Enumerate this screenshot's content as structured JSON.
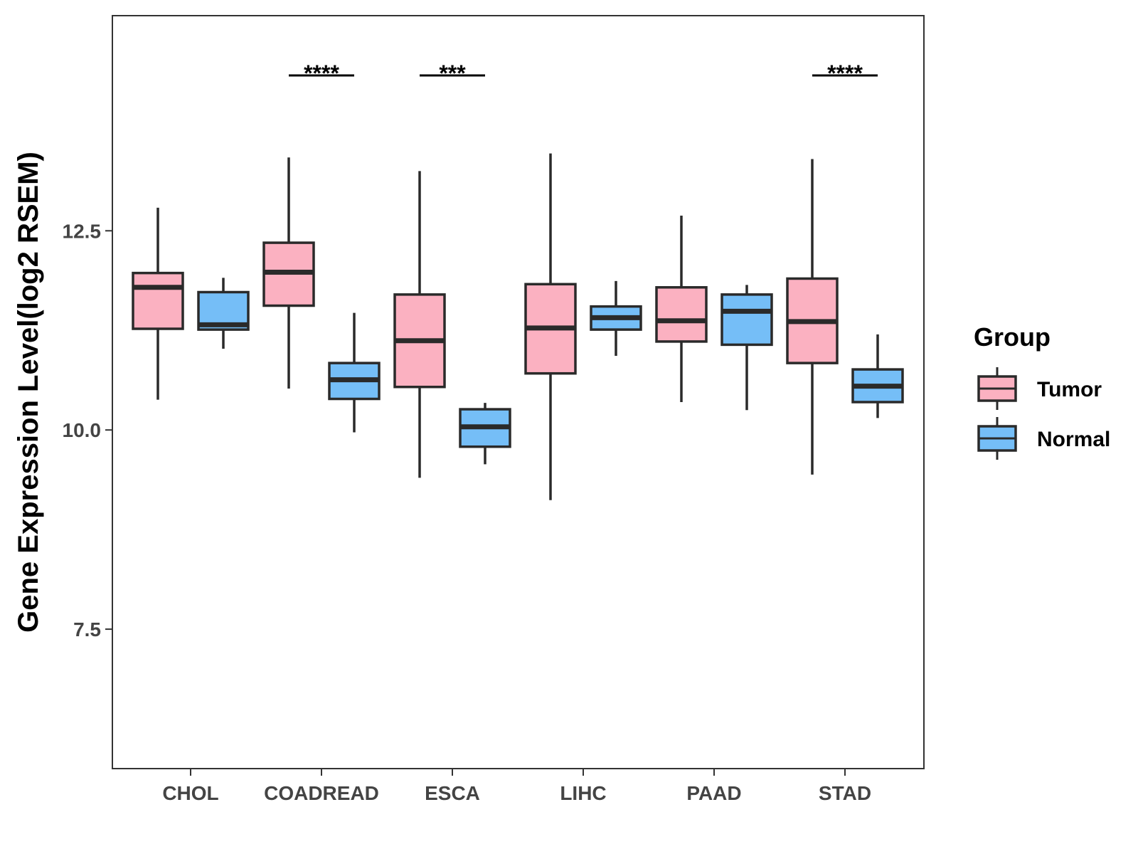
{
  "chart_data": {
    "type": "boxplot",
    "ylabel": "Gene Expression Level(log2 RSEM)",
    "xlabel": "",
    "ylim": [
      5.75,
      15.2
    ],
    "yticks": [
      {
        "value": 7.5,
        "label": "7.5"
      },
      {
        "value": 10.0,
        "label": "10.0"
      },
      {
        "value": 12.5,
        "label": "12.5"
      }
    ],
    "categories": [
      "CHOL",
      "COADREAD",
      "ESCA",
      "LIHC",
      "PAAD",
      "STAD"
    ],
    "legend": {
      "title": "Group",
      "position": "right",
      "entries": [
        {
          "name": "Tumor",
          "color": "#FBB1C1"
        },
        {
          "name": "Normal",
          "color": "#75BEF7"
        }
      ]
    },
    "series": [
      {
        "name": "Tumor",
        "color": "#FBB1C1",
        "boxes": [
          {
            "category": "CHOL",
            "whisker_low": 10.38,
            "q1": 11.27,
            "median": 11.79,
            "q3": 11.97,
            "whisker_high": 12.79
          },
          {
            "category": "COADREAD",
            "whisker_low": 10.52,
            "q1": 11.56,
            "median": 11.98,
            "q3": 12.35,
            "whisker_high": 13.42
          },
          {
            "category": "ESCA",
            "whisker_low": 9.4,
            "q1": 10.54,
            "median": 11.12,
            "q3": 11.7,
            "whisker_high": 13.25
          },
          {
            "category": "LIHC",
            "whisker_low": 9.12,
            "q1": 10.71,
            "median": 11.28,
            "q3": 11.83,
            "whisker_high": 13.47
          },
          {
            "category": "PAAD",
            "whisker_low": 10.35,
            "q1": 11.11,
            "median": 11.37,
            "q3": 11.79,
            "whisker_high": 12.69
          },
          {
            "category": "STAD",
            "whisker_low": 9.44,
            "q1": 10.84,
            "median": 11.36,
            "q3": 11.9,
            "whisker_high": 13.4
          }
        ]
      },
      {
        "name": "Normal",
        "color": "#75BEF7",
        "boxes": [
          {
            "category": "CHOL",
            "whisker_low": 11.02,
            "q1": 11.26,
            "median": 11.32,
            "q3": 11.73,
            "whisker_high": 11.91
          },
          {
            "category": "COADREAD",
            "whisker_low": 9.97,
            "q1": 10.39,
            "median": 10.63,
            "q3": 10.84,
            "whisker_high": 11.47
          },
          {
            "category": "ESCA",
            "whisker_low": 9.57,
            "q1": 9.79,
            "median": 10.04,
            "q3": 10.26,
            "whisker_high": 10.34
          },
          {
            "category": "LIHC",
            "whisker_low": 10.93,
            "q1": 11.26,
            "median": 11.41,
            "q3": 11.55,
            "whisker_high": 11.87
          },
          {
            "category": "PAAD",
            "whisker_low": 10.25,
            "q1": 11.07,
            "median": 11.49,
            "q3": 11.7,
            "whisker_high": 11.82
          },
          {
            "category": "STAD",
            "whisker_low": 10.15,
            "q1": 10.35,
            "median": 10.55,
            "q3": 10.76,
            "whisker_high": 11.2
          }
        ]
      }
    ],
    "annotations": [
      {
        "category": "COADREAD",
        "label": "****",
        "y": 14.45
      },
      {
        "category": "ESCA",
        "label": "***",
        "y": 14.45
      },
      {
        "category": "STAD",
        "label": "****",
        "y": 14.45
      }
    ]
  }
}
